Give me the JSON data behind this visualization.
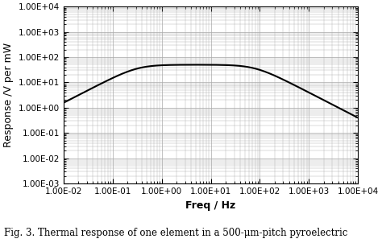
{
  "title": "",
  "xlabel": "Freq / Hz",
  "ylabel": "Response /V per mW",
  "xlim_log": [
    -2,
    4
  ],
  "ylim_log": [
    -3,
    4
  ],
  "xtick_labels": [
    "1.00E-02",
    "1.00E-01",
    "1.00E+00",
    "1.00E+01",
    "1.00E+02",
    "1.00E+03",
    "1.00E+04"
  ],
  "ytick_labels": [
    "1.00E-03",
    "1.00E-02",
    "1.00E-01",
    "1.00E+00",
    "1.00E+01",
    "1.00E+02",
    "1.00E+03",
    "1.00E+04"
  ],
  "xtick_positions": [
    -2,
    -1,
    0,
    1,
    2,
    3,
    4
  ],
  "ytick_positions": [
    -3,
    -2,
    -1,
    0,
    1,
    2,
    3,
    4
  ],
  "line_color": "#000000",
  "bg_color": "#ffffff",
  "grid_color": "#aaaaaa",
  "caption": "Fig. 3. Thermal response of one element in a 500-μm-pitch pyroelectric",
  "caption_fontsize": 8.5,
  "axis_label_fontsize": 9,
  "tick_fontsize": 7.5,
  "peak_response": 50.0,
  "f_thermal": 0.32,
  "f_electrical": 80.0
}
